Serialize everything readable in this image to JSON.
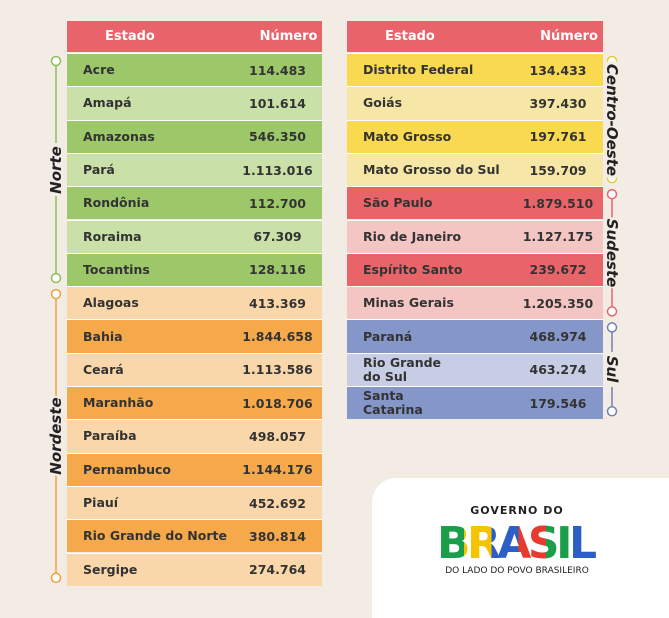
{
  "tables": [
    {
      "headers": [
        "Estado",
        "Número"
      ],
      "groups": [
        {
          "region": "Norte",
          "rows": [
            [
              "Acre",
              "114.483"
            ],
            [
              "Amapá",
              "101.614"
            ],
            [
              "Amazonas",
              "546.350"
            ],
            [
              "Pará",
              "1.113.016"
            ],
            [
              "Rondônia",
              "112.700"
            ],
            [
              "Roraima",
              "67.309"
            ],
            [
              "Tocantins",
              "128.116"
            ]
          ]
        },
        {
          "region": "Nordeste",
          "rows": [
            [
              "Alagoas",
              "413.369"
            ],
            [
              "Bahia",
              "1.844.658"
            ],
            [
              "Ceará",
              "1.113.586"
            ],
            [
              "Maranhão",
              "1.018.706"
            ],
            [
              "Paraíba",
              "498.057"
            ],
            [
              "Pernambuco",
              "1.144.176"
            ],
            [
              "Piauí",
              "452.692"
            ],
            [
              "Rio Grande do Norte",
              "380.814"
            ],
            [
              "Sergipe",
              "274.764"
            ]
          ]
        }
      ]
    },
    {
      "headers": [
        "Estado",
        "Número"
      ],
      "groups": [
        {
          "region": "Centro-Oeste",
          "rows": [
            [
              "Distrito Federal",
              "134.433"
            ],
            [
              "Goiás",
              "397.430"
            ],
            [
              "Mato Grosso",
              "197.761"
            ],
            [
              "Mato Grosso do Sul",
              "159.709"
            ]
          ]
        },
        {
          "region": "Sudeste",
          "rows": [
            [
              "São Paulo",
              "1.879.510"
            ],
            [
              "Rio de Janeiro",
              "1.127.175"
            ],
            [
              "Espírito Santo",
              "239.672"
            ],
            [
              "Minas Gerais",
              "1.205.350"
            ]
          ]
        },
        {
          "region": "Sul",
          "rows": [
            [
              "Paraná",
              "468.974"
            ],
            [
              "Rio Grande\ndo Sul",
              "463.274"
            ],
            [
              "Santa\nCatarina",
              "179.546"
            ]
          ]
        }
      ]
    }
  ],
  "logo": {
    "top": "GOVERNO DO",
    "word": "BRASIL",
    "tagline": "DO LADO DO POVO BRASILEIRO"
  }
}
